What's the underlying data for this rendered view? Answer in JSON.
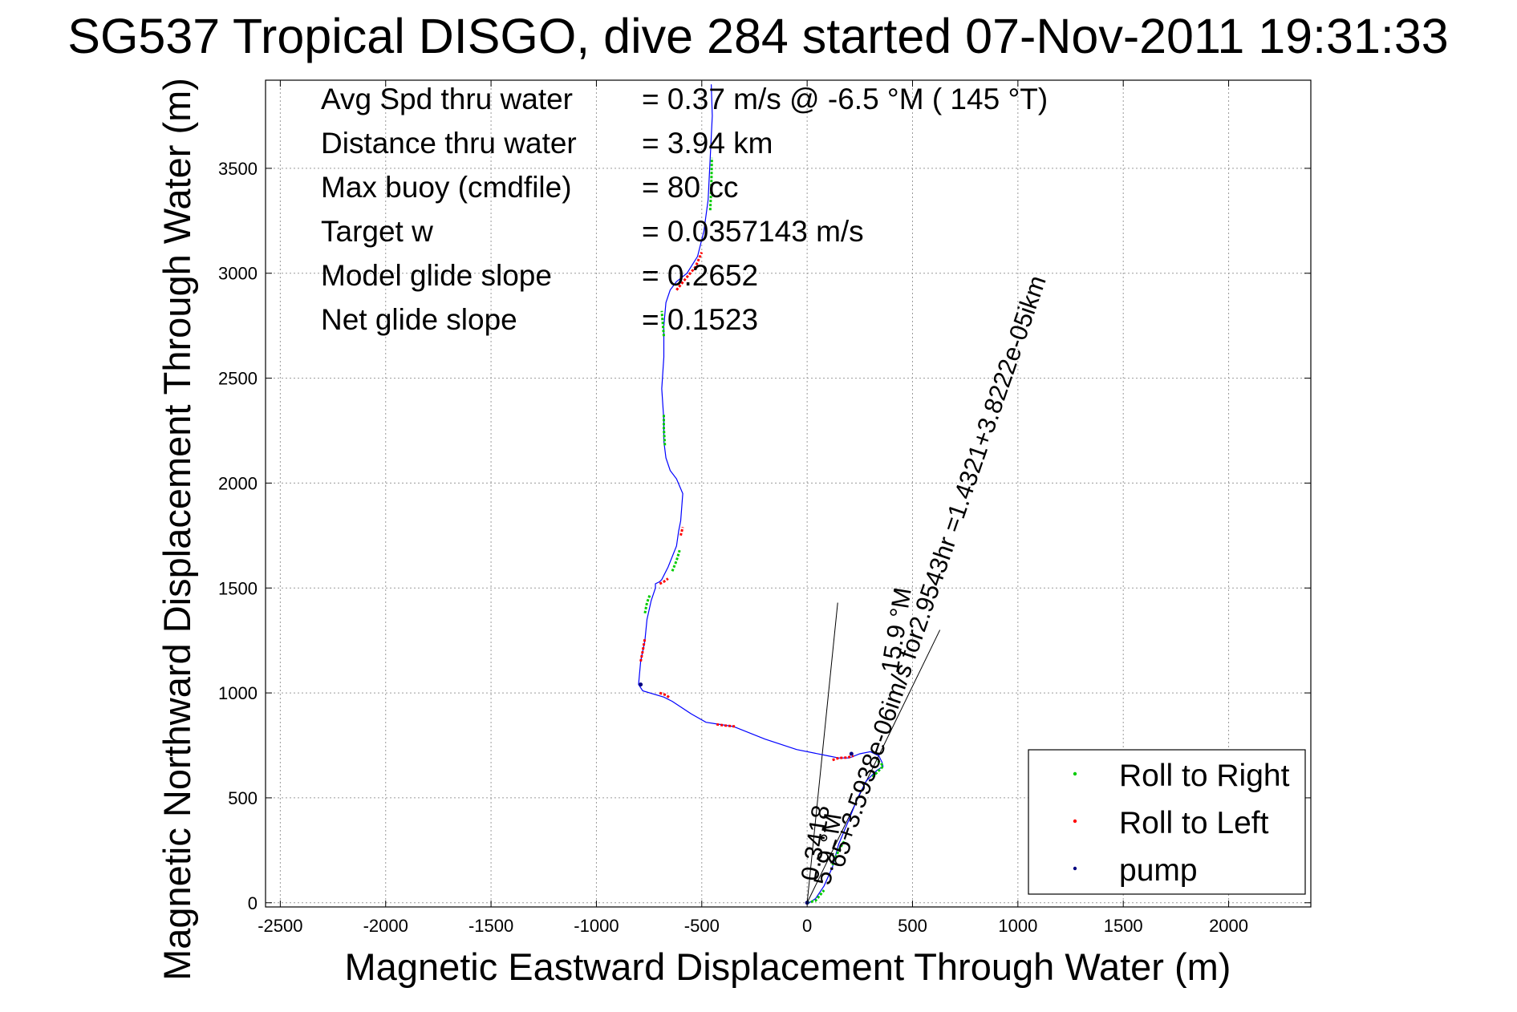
{
  "chart_data": {
    "type": "line",
    "title": "SG537 Tropical DISGO, dive 284 started 07-Nov-2011 19:31:33",
    "xlabel": "Magnetic Eastward Displacement Through Water (m)",
    "ylabel": "Magnetic Northward Displacement Through Water (m)",
    "xlim": [
      -2570,
      2390
    ],
    "ylim": [
      -20,
      3920
    ],
    "xticks": [
      -2500,
      -2000,
      -1500,
      -1000,
      -500,
      0,
      500,
      1000,
      1500,
      2000
    ],
    "yticks": [
      0,
      500,
      1000,
      1500,
      2000,
      2500,
      3000,
      3500
    ],
    "grid": true,
    "legend_position": "bottom-right",
    "stats": [
      {
        "label": "Avg Spd thru water",
        "value": "=  0.37 m/s @  -6.5 °M ( 145 °T)"
      },
      {
        "label": "Distance thru water",
        "value": "=  3.94 km"
      },
      {
        "label": "Max buoy (cmdfile)",
        "value": "= 80 cc"
      },
      {
        "label": "Target w",
        "value": "= 0.0357143 m/s"
      },
      {
        "label": "Model glide slope",
        "value": "= 0.2652"
      },
      {
        "label": "Net glide slope",
        "value": "= 0.1523"
      }
    ],
    "series": [
      {
        "name": "Roll to Right",
        "color": "#00cc00",
        "marker": "dot"
      },
      {
        "name": "Roll to Left",
        "color": "#ff0000",
        "marker": "dot"
      },
      {
        "name": "pump",
        "color": "#000080",
        "marker": "dot"
      }
    ],
    "track": {
      "color": "#0000ff",
      "x": [
        0,
        10,
        40,
        80,
        120,
        150,
        200,
        240,
        280,
        330,
        360,
        355,
        340,
        300,
        250,
        200,
        150,
        100,
        -50,
        -200,
        -350,
        -480,
        -550,
        -640,
        -680,
        -780,
        -800,
        -790,
        -770,
        -760,
        -740,
        -720,
        -720,
        -700,
        -690,
        -660,
        -620,
        -610,
        -600,
        -590,
        -620,
        -650,
        -670,
        -680,
        -680,
        -690,
        -680,
        -680,
        -670,
        -650,
        -620,
        -570,
        -520,
        -490,
        -470,
        -460,
        -450,
        -455
      ],
      "y": [
        0,
        0,
        20,
        80,
        170,
        280,
        400,
        500,
        580,
        630,
        650,
        670,
        700,
        720,
        710,
        690,
        690,
        700,
        730,
        780,
        840,
        860,
        900,
        960,
        980,
        1010,
        1040,
        1150,
        1250,
        1350,
        1440,
        1500,
        1520,
        1530,
        1540,
        1600,
        1700,
        1770,
        1820,
        1950,
        2020,
        2060,
        2120,
        2200,
        2300,
        2450,
        2600,
        2750,
        2860,
        2920,
        2960,
        3000,
        3080,
        3200,
        3350,
        3550,
        3750,
        3900
      ]
    },
    "roll_right_segments": [
      {
        "x": [
          0,
          40,
          80
        ],
        "y": [
          0,
          10,
          60
        ]
      },
      {
        "x": [
          120,
          150,
          180
        ],
        "y": [
          180,
          250,
          300
        ]
      },
      {
        "x": [
          310,
          340,
          360,
          350,
          330
        ],
        "y": [
          600,
          630,
          650,
          665,
          680
        ]
      },
      {
        "x": [
          -770,
          -760,
          -745
        ],
        "y": [
          1380,
          1430,
          1470
        ]
      },
      {
        "x": [
          -640,
          -620,
          -605
        ],
        "y": [
          1580,
          1630,
          1680
        ]
      },
      {
        "x": [
          -675,
          -680,
          -680
        ],
        "y": [
          2180,
          2260,
          2330
        ]
      },
      {
        "x": [
          -680,
          -685,
          -690
        ],
        "y": [
          2700,
          2760,
          2820
        ]
      },
      {
        "x": [
          -460,
          -455,
          -452
        ],
        "y": [
          3300,
          3400,
          3550
        ]
      }
    ],
    "roll_left_segments": [
      {
        "x": [
          120,
          150,
          190,
          220
        ],
        "y": [
          680,
          690,
          692,
          700
        ]
      },
      {
        "x": [
          -430,
          -390,
          -340
        ],
        "y": [
          850,
          845,
          840
        ]
      },
      {
        "x": [
          -700,
          -670,
          -650
        ],
        "y": [
          1000,
          990,
          975
        ]
      },
      {
        "x": [
          -790,
          -780,
          -770
        ],
        "y": [
          1150,
          1200,
          1260
        ]
      },
      {
        "x": [
          -700,
          -680,
          -660
        ],
        "y": [
          1520,
          1530,
          1545
        ]
      },
      {
        "x": [
          -600,
          -590
        ],
        "y": [
          1750,
          1790
        ]
      },
      {
        "x": [
          -620,
          -580,
          -530,
          -500
        ],
        "y": [
          2920,
          2970,
          3030,
          3100
        ]
      }
    ],
    "pump_points": {
      "x": [
        -790,
        210,
        0
      ],
      "y": [
        1040,
        710,
        0
      ]
    },
    "direction_lines": [
      {
        "x": [
          0,
          145
        ],
        "y": [
          0,
          1430
        ]
      },
      {
        "x": [
          0,
          630
        ],
        "y": [
          0,
          1300
        ]
      }
    ],
    "annotations": [
      {
        "text": "0.3418",
        "x": 50,
        "y": 100,
        "angle": -81
      },
      {
        "text": "5.9 °M",
        "x": 110,
        "y": 80,
        "angle": -81
      },
      {
        "text": "65+3.5938e-06im/s for2.9543hr =1.4321+3.8222e-05ikm",
        "x": 170,
        "y": 160,
        "angle": -71
      },
      {
        "text": "15.9 °M",
        "x": 430,
        "y": 1090,
        "angle": -81
      }
    ]
  }
}
